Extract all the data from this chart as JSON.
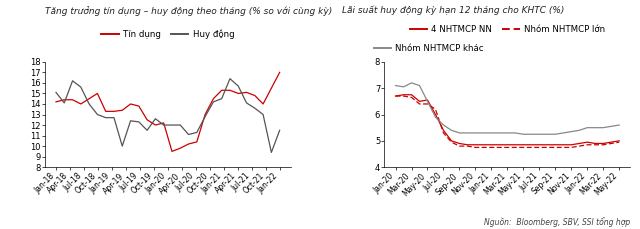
{
  "chart1": {
    "title": "Tăng trưởng tín dụng – huy động theo tháng (% so với cùng kỳ)",
    "legend": [
      "Tín dụng",
      "Huy động"
    ],
    "legend_colors": [
      "#cc0000",
      "#555555"
    ],
    "ylim": [
      8,
      18
    ],
    "yticks": [
      8,
      9,
      10,
      11,
      12,
      13,
      14,
      15,
      16,
      17,
      18
    ],
    "xtick_labels": [
      "Jan-18",
      "Apr-18",
      "Jul-18",
      "Oct-18",
      "Jan-19",
      "Apr-19",
      "Jul-19",
      "Oct-19",
      "Jan-20",
      "Apr-20",
      "Jul-20",
      "Oct-20",
      "Jan-21",
      "Apr-21",
      "Jul-21",
      "Oct-21",
      "Jan-22"
    ],
    "tin_dung": [
      14.2,
      14.4,
      14.4,
      14.0,
      14.5,
      15.0,
      13.3,
      13.3,
      13.4,
      14.0,
      13.8,
      12.5,
      12.0,
      12.2,
      9.5,
      9.8,
      10.2,
      10.4,
      13.0,
      14.5,
      15.3,
      15.3,
      15.0,
      15.1,
      14.8,
      14.0,
      15.5,
      17.0
    ],
    "huy_dong": [
      15.1,
      14.1,
      16.2,
      15.6,
      14.0,
      13.0,
      12.7,
      12.7,
      10.0,
      12.4,
      12.3,
      11.5,
      12.6,
      12.0,
      12.0,
      12.0,
      11.1,
      11.3,
      12.8,
      14.2,
      14.5,
      16.4,
      15.7,
      14.1,
      13.6,
      13.0,
      9.4,
      11.5
    ],
    "n_points": 28
  },
  "chart2": {
    "title": "Lãi suất huy động kỳ hạn 12 tháng cho KHTC (%)",
    "legend": [
      "4 NHTMCP NN",
      "Nhóm NHTMCP lớn",
      "Nhóm NHTMCP khác"
    ],
    "legend_colors": [
      "#cc0000",
      "#cc0000",
      "#888888"
    ],
    "legend_styles": [
      "solid",
      "dashed",
      "solid"
    ],
    "ylim": [
      4.0,
      8.0
    ],
    "yticks": [
      4.0,
      5.0,
      6.0,
      7.0,
      8.0
    ],
    "xtick_labels": [
      "Jan-20",
      "Mar-20",
      "May-20",
      "Jul-20",
      "Sep-20",
      "Nov-20",
      "Jan-21",
      "Mar-21",
      "May-21",
      "Jul-21",
      "Sep-21",
      "Nov-21",
      "Jan-22",
      "Mar-22",
      "May-22"
    ],
    "nhtmcp_nn": [
      6.7,
      6.75,
      6.75,
      6.5,
      6.55,
      6.0,
      5.4,
      5.0,
      4.9,
      4.85,
      4.85,
      4.85,
      4.85,
      4.85,
      4.85,
      4.85,
      4.85,
      4.85,
      4.85,
      4.85,
      4.85,
      4.85,
      4.85,
      4.9,
      4.95,
      4.9,
      4.9,
      4.95,
      5.0
    ],
    "nhtmcp_lon": [
      6.7,
      6.7,
      6.65,
      6.4,
      6.4,
      6.2,
      5.3,
      4.95,
      4.8,
      4.8,
      4.75,
      4.75,
      4.75,
      4.75,
      4.75,
      4.75,
      4.75,
      4.75,
      4.75,
      4.75,
      4.75,
      4.75,
      4.75,
      4.8,
      4.85,
      4.85,
      4.85,
      4.9,
      4.95
    ],
    "nhtmcp_khac": [
      7.1,
      7.05,
      7.2,
      7.1,
      6.5,
      5.9,
      5.6,
      5.4,
      5.3,
      5.3,
      5.3,
      5.3,
      5.3,
      5.3,
      5.3,
      5.3,
      5.25,
      5.25,
      5.25,
      5.25,
      5.25,
      5.3,
      5.35,
      5.4,
      5.5,
      5.5,
      5.5,
      5.55,
      5.6
    ],
    "n_points": 29,
    "source": "Nguồn:  Bloomberg, SBV, SSI tổng hợp"
  }
}
